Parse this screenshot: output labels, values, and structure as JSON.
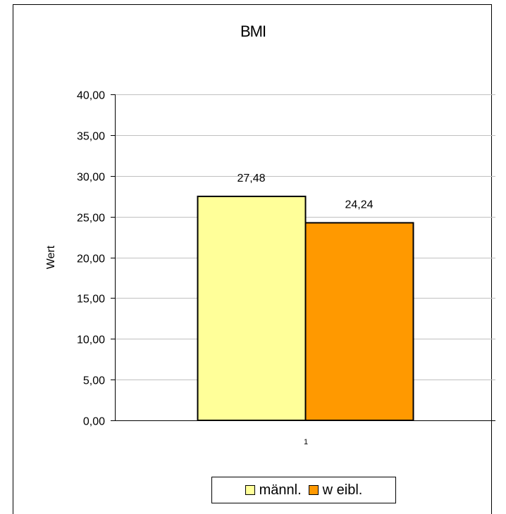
{
  "chart_data": {
    "type": "bar",
    "title": "BMI",
    "xlabel": "",
    "ylabel": "Wert",
    "categories": [
      "1"
    ],
    "ylim": [
      0,
      40
    ],
    "yticks": [
      "0,00",
      "5,00",
      "10,00",
      "15,00",
      "20,00",
      "25,00",
      "30,00",
      "35,00",
      "40,00"
    ],
    "series": [
      {
        "name": "männl.",
        "values": [
          27.48
        ],
        "label": "27,48",
        "color": "#ffff99"
      },
      {
        "name": "w eibl.",
        "values": [
          24.24
        ],
        "label": "24,24",
        "color": "#ff9900"
      }
    ],
    "grid": true,
    "legend": "bottom"
  }
}
